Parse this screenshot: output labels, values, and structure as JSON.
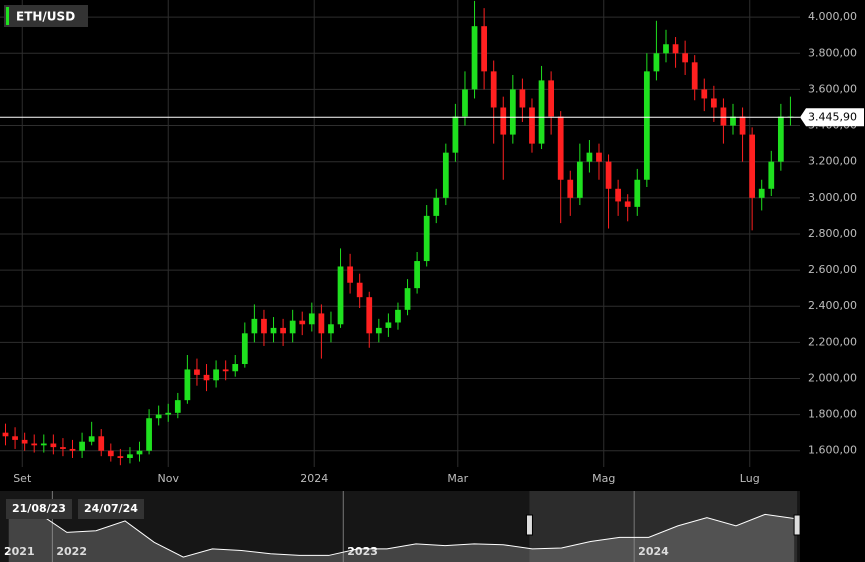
{
  "chart_data": {
    "type": "candlestick",
    "title": "ETH/USD",
    "series": [
      {
        "name": "ETH/USD",
        "up_color": "#1fe01f",
        "down_color": "#ff2020",
        "x": [
          4,
          8,
          12,
          16,
          20,
          24,
          28,
          32,
          36,
          40,
          44,
          48,
          52,
          56,
          60,
          64,
          68,
          72,
          76,
          80,
          84,
          88,
          92,
          96,
          100,
          104,
          108,
          112,
          116,
          120,
          124,
          128,
          132,
          136,
          140,
          144,
          148,
          152,
          156,
          160,
          164,
          168,
          172,
          176,
          180,
          184,
          188,
          192,
          196,
          200,
          204,
          208,
          212,
          216,
          220,
          224,
          228,
          232,
          236,
          240,
          244,
          248,
          252,
          256,
          260,
          264,
          268,
          272,
          276,
          280,
          284,
          288,
          292,
          296,
          300,
          304,
          308,
          312,
          316,
          320,
          324,
          328,
          332
        ],
        "open": [
          1700,
          1680,
          1660,
          1640,
          1630,
          1640,
          1620,
          1610,
          1600,
          1650,
          1680,
          1600,
          1570,
          1560,
          1580,
          1600,
          1780,
          1800,
          1810,
          1880,
          2050,
          2020,
          1990,
          2050,
          2040,
          2080,
          2250,
          2330,
          2250,
          2280,
          2250,
          2320,
          2300,
          2360,
          2250,
          2300,
          2620,
          2530,
          2450,
          2250,
          2280,
          2310,
          2380,
          2500,
          2650,
          2900,
          3000,
          3250,
          3450,
          3600,
          3950,
          3700,
          3500,
          3350,
          3600,
          3500,
          3300,
          3650,
          3450,
          3100,
          3000,
          3200,
          3250,
          3200,
          3050,
          2980,
          2950,
          3100,
          3700,
          3800,
          3850,
          3800,
          3750,
          3600,
          3550,
          3500,
          3400,
          3450,
          3350,
          3000,
          3050,
          3200,
          3450
        ],
        "high": [
          1750,
          1730,
          1700,
          1690,
          1690,
          1690,
          1670,
          1660,
          1700,
          1760,
          1720,
          1640,
          1610,
          1620,
          1650,
          1830,
          1850,
          1860,
          1920,
          2130,
          2110,
          2080,
          2100,
          2100,
          2130,
          2310,
          2410,
          2380,
          2340,
          2330,
          2380,
          2370,
          2420,
          2410,
          2370,
          2720,
          2690,
          2580,
          2480,
          2330,
          2360,
          2420,
          2550,
          2700,
          2960,
          3050,
          3300,
          3520,
          3700,
          4090,
          4050,
          3760,
          3560,
          3680,
          3660,
          3550,
          3730,
          3700,
          3480,
          3150,
          3300,
          3320,
          3300,
          3240,
          3100,
          3020,
          3160,
          3800,
          3980,
          3930,
          3890,
          3870,
          3790,
          3660,
          3620,
          3550,
          3520,
          3500,
          3390,
          3100,
          3260,
          3520,
          3560
        ],
        "low": [
          1630,
          1610,
          1600,
          1590,
          1590,
          1580,
          1570,
          1560,
          1560,
          1630,
          1570,
          1540,
          1520,
          1530,
          1540,
          1580,
          1740,
          1760,
          1780,
          1860,
          1960,
          1930,
          1950,
          1990,
          2010,
          2060,
          2200,
          2180,
          2200,
          2180,
          2200,
          2240,
          2260,
          2110,
          2200,
          2280,
          2470,
          2390,
          2170,
          2200,
          2230,
          2270,
          2350,
          2470,
          2620,
          2860,
          2960,
          3200,
          3400,
          3550,
          3600,
          3300,
          3100,
          3300,
          3420,
          3250,
          3270,
          3350,
          2860,
          2900,
          2960,
          3140,
          3100,
          2830,
          2900,
          2870,
          2900,
          3060,
          3650,
          3750,
          3720,
          3680,
          3540,
          3480,
          3420,
          3300,
          3350,
          3200,
          2820,
          2930,
          3010,
          3150,
          3400
        ],
        "close": [
          1680,
          1660,
          1640,
          1630,
          1640,
          1620,
          1610,
          1600,
          1650,
          1680,
          1600,
          1570,
          1560,
          1580,
          1600,
          1780,
          1800,
          1810,
          1880,
          2050,
          2020,
          1990,
          2050,
          2040,
          2080,
          2250,
          2330,
          2250,
          2280,
          2250,
          2320,
          2300,
          2360,
          2250,
          2300,
          2620,
          2530,
          2450,
          2250,
          2280,
          2310,
          2380,
          2500,
          2650,
          2900,
          3000,
          3250,
          3450,
          3600,
          3950,
          3700,
          3500,
          3350,
          3600,
          3500,
          3300,
          3650,
          3450,
          3100,
          3000,
          3200,
          3250,
          3200,
          3050,
          2980,
          2950,
          3100,
          3700,
          3800,
          3850,
          3800,
          3750,
          3600,
          3550,
          3500,
          3400,
          3450,
          3350,
          3000,
          3050,
          3200,
          3450,
          3450
        ]
      }
    ],
    "last_price": {
      "value": 3445.9,
      "label": "3.445,90"
    },
    "xlim": [
      1.7,
      336
    ],
    "xticks": [
      {
        "value": 11,
        "label": "Set"
      },
      {
        "value": 72,
        "label": "Nov"
      },
      {
        "value": 133,
        "label": "2024"
      },
      {
        "value": 193,
        "label": "Mar"
      },
      {
        "value": 254,
        "label": "Mag"
      },
      {
        "value": 315,
        "label": "Lug"
      }
    ],
    "ylim": [
      1510,
      4095
    ],
    "yticks": [
      {
        "value": 1600,
        "label": "1.600,00"
      },
      {
        "value": 1800,
        "label": "1.800,00"
      },
      {
        "value": 2000,
        "label": "2.000,00"
      },
      {
        "value": 2200,
        "label": "2.200,00"
      },
      {
        "value": 2400,
        "label": "2.400,00"
      },
      {
        "value": 2600,
        "label": "2.600,00"
      },
      {
        "value": 2800,
        "label": "2.800,00"
      },
      {
        "value": 3000,
        "label": "3.000,00"
      },
      {
        "value": 3200,
        "label": "3.200,00"
      },
      {
        "value": 3400,
        "label": "3.400,00"
      },
      {
        "value": 3600,
        "label": "3.600,00"
      },
      {
        "value": 3800,
        "label": "3.800,00"
      },
      {
        "value": 4000,
        "label": "4.000,00"
      }
    ],
    "grid": true,
    "navigator": {
      "x": [
        2021.85,
        2021.95,
        2022.05,
        2022.15,
        2022.25,
        2022.35,
        2022.45,
        2022.55,
        2022.65,
        2022.75,
        2022.85,
        2022.95,
        2023.05,
        2023.15,
        2023.25,
        2023.35,
        2023.45,
        2023.55,
        2023.65,
        2023.75,
        2023.85,
        2023.95,
        2024.05,
        2024.15,
        2024.25,
        2024.35,
        2024.45,
        2024.55
      ],
      "values": [
        4300,
        3800,
        2600,
        2700,
        3300,
        2000,
        1100,
        1600,
        1500,
        1300,
        1200,
        1200,
        1600,
        1600,
        1900,
        1800,
        1900,
        1850,
        1600,
        1650,
        2050,
        2300,
        2300,
        3000,
        3500,
        3000,
        3700,
        3450
      ],
      "xlim": [
        2021.82,
        2024.57
      ],
      "ylim": [
        800,
        5000
      ],
      "xticks": [
        2021,
        2022,
        2023,
        2024
      ],
      "window": [
        {
          "value": 2023.64,
          "label": "21/08/23"
        },
        {
          "value": 2024.56,
          "label": "24/07/24"
        }
      ]
    }
  }
}
